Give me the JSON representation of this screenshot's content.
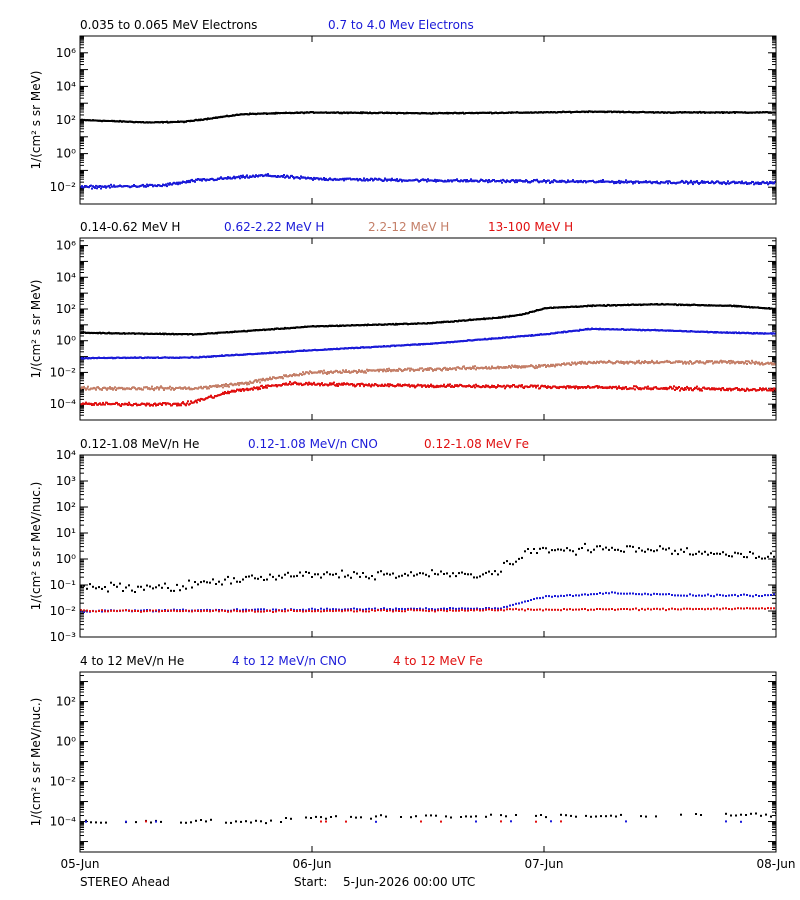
{
  "footer": {
    "spacecraft": "STEREO Ahead",
    "start_label": "Start:",
    "start_value": "5-Jun-2026 00:00 UTC"
  },
  "colors": {
    "black": "#000000",
    "blue": "#1a1ad8",
    "tan": "#c47f68",
    "red": "#e01010"
  },
  "chart_data": [
    {
      "type": "scatter",
      "y_scale": "log",
      "ylabel": "1/(cm² s sr MeV)",
      "ylim": [
        0.001,
        10000000
      ],
      "ytick_exponents": [
        -2,
        0,
        2,
        4,
        6
      ],
      "x": [
        "05-Jun",
        "06-Jun",
        "07-Jun",
        "08-Jun"
      ],
      "series": [
        {
          "name": "0.035 to 0.065 MeV Electrons",
          "color": "black",
          "x_day": [
            0,
            0.3,
            0.45,
            0.7,
            1.0,
            1.5,
            2.0,
            2.2,
            2.5,
            3.0
          ],
          "log10_y": [
            2.0,
            1.85,
            1.9,
            2.35,
            2.45,
            2.4,
            2.45,
            2.5,
            2.45,
            2.45
          ]
        },
        {
          "name": "0.7 to 4.0 Mev Electrons",
          "color": "blue",
          "x_day": [
            0,
            0.35,
            0.5,
            0.8,
            1.0,
            1.5,
            2.0,
            2.5,
            3.0
          ],
          "log10_y": [
            -2.0,
            -1.9,
            -1.6,
            -1.3,
            -1.5,
            -1.6,
            -1.65,
            -1.7,
            -1.75
          ]
        }
      ]
    },
    {
      "type": "scatter",
      "y_scale": "log",
      "ylabel": "1/(cm² s sr MeV)",
      "ylim": [
        1e-05,
        3000000
      ],
      "ytick_exponents": [
        -4,
        -2,
        0,
        2,
        4,
        6
      ],
      "x": [
        "05-Jun",
        "06-Jun",
        "07-Jun",
        "08-Jun"
      ],
      "series": [
        {
          "name": "0.14-0.62 MeV H",
          "color": "black",
          "x_day": [
            0,
            0.5,
            1.0,
            1.5,
            1.8,
            1.9,
            2.0,
            2.2,
            2.5,
            2.8,
            3.0
          ],
          "log10_y": [
            0.5,
            0.4,
            0.9,
            1.1,
            1.45,
            1.65,
            2.05,
            2.2,
            2.3,
            2.2,
            2.0
          ]
        },
        {
          "name": "0.62-2.22 MeV H",
          "color": "blue",
          "x_day": [
            0,
            0.5,
            1.0,
            1.5,
            2.0,
            2.2,
            2.5,
            2.8,
            3.0
          ],
          "log10_y": [
            -1.1,
            -1.05,
            -0.6,
            -0.2,
            0.4,
            0.75,
            0.65,
            0.5,
            0.45
          ]
        },
        {
          "name": "2.2-12 MeV H",
          "color": "tan",
          "x_day": [
            0,
            0.5,
            0.7,
            0.9,
            1.0,
            1.5,
            2.0,
            2.2,
            2.5,
            2.8,
            3.0
          ],
          "log10_y": [
            -3.0,
            -3.0,
            -2.7,
            -2.2,
            -2.0,
            -1.8,
            -1.6,
            -1.35,
            -1.35,
            -1.35,
            -1.45
          ]
        },
        {
          "name": "13-100 MeV H",
          "color": "red",
          "x_day": [
            0,
            0.45,
            0.65,
            0.9,
            1.5,
            2.0,
            2.5,
            3.0
          ],
          "log10_y": [
            -4.0,
            -4.0,
            -3.2,
            -2.7,
            -2.85,
            -2.9,
            -3.0,
            -3.1
          ]
        }
      ]
    },
    {
      "type": "scatter",
      "y_scale": "log",
      "ylabel": "1/(cm² s sr MeV/nuc.)",
      "ylim": [
        0.001,
        10000
      ],
      "ytick_exponents": [
        -3,
        -2,
        -1,
        0,
        1,
        2,
        3,
        4
      ],
      "x": [
        "05-Jun",
        "06-Jun",
        "07-Jun",
        "08-Jun"
      ],
      "series": [
        {
          "name": "0.12-1.08 MeV/n He",
          "color": "black",
          "x_day": [
            0,
            0.4,
            0.6,
            1.0,
            1.5,
            1.75,
            1.85,
            1.95,
            2.1,
            2.5,
            2.8,
            3.0
          ],
          "log10_y": [
            -1.1,
            -1.1,
            -0.85,
            -0.6,
            -0.6,
            -0.6,
            -0.2,
            0.3,
            0.4,
            0.35,
            0.15,
            0.1
          ]
        },
        {
          "name": "0.12-1.08 MeV/n CNO",
          "color": "blue",
          "x_day": [
            0,
            1.8,
            2.0,
            2.3,
            2.6,
            3.0
          ],
          "log10_y": [
            -2.0,
            -1.9,
            -1.45,
            -1.3,
            -1.4,
            -1.4
          ]
        },
        {
          "name": "0.12-1.08 MeV Fe",
          "color": "red",
          "x_day": [
            0,
            1.0,
            2.0,
            3.0
          ],
          "log10_y": [
            -2.0,
            -2.0,
            -1.95,
            -1.9
          ]
        }
      ]
    },
    {
      "type": "scatter",
      "y_scale": "log",
      "ylabel": "1/(cm² s sr MeV/nuc.)",
      "ylim": [
        3e-06,
        3000
      ],
      "ytick_exponents": [
        -4,
        -2,
        0,
        2
      ],
      "x": [
        "05-Jun",
        "06-Jun",
        "07-Jun",
        "08-Jun"
      ],
      "series": [
        {
          "name": "4 to 12 MeV/n He",
          "color": "black",
          "x_day": [
            0,
            0.8,
            1.0,
            1.5,
            2.0,
            2.5,
            3.0
          ],
          "log10_y": [
            -4.0,
            -4.0,
            -3.8,
            -3.7,
            -3.75,
            -3.7,
            -3.65
          ]
        },
        {
          "name": "4 to 12 MeV/n CNO",
          "color": "blue",
          "x_day": [
            0,
            1.0,
            2.0,
            3.0
          ],
          "log10_y": [
            -4.0,
            -4.0,
            -4.0,
            -4.0
          ]
        },
        {
          "name": "4 to 12 MeV Fe",
          "color": "red",
          "x_day": [
            0,
            1.0,
            2.0,
            3.0
          ],
          "log10_y": [
            -4.0,
            -4.0,
            -4.0,
            -4.0
          ]
        }
      ]
    }
  ]
}
